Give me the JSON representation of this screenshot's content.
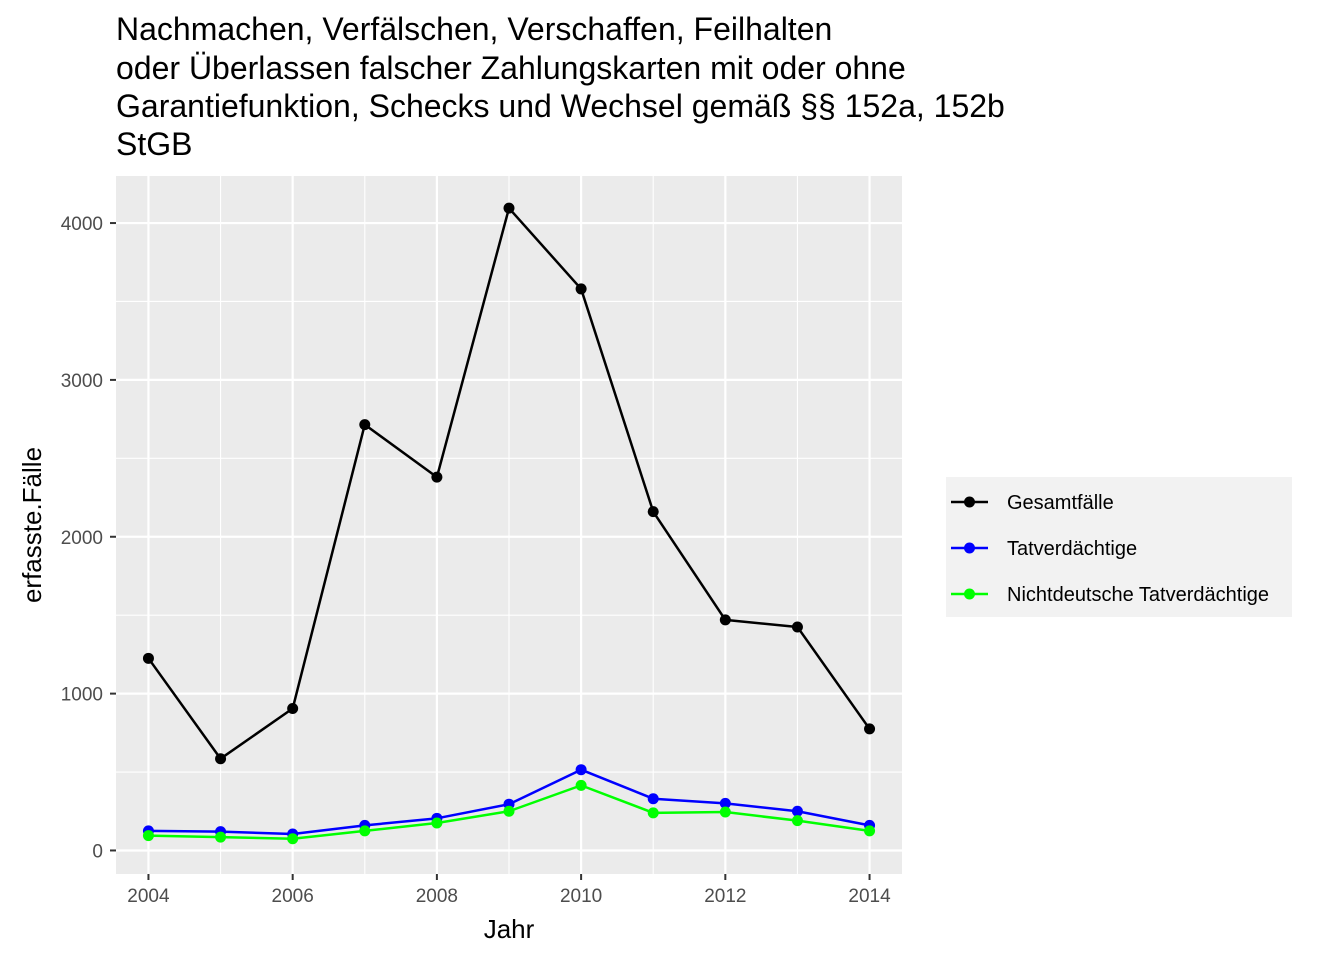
{
  "chart_data": {
    "type": "line",
    "title_lines": [
      "Nachmachen, Verfälschen, Verschaffen, Feilhalten",
      "oder Überlassen falscher Zahlungskarten mit oder ohne",
      "Garantiefunktion, Schecks und Wechsel gemäß §§ 152a, 152b",
      "StGB"
    ],
    "xlabel": "Jahr",
    "ylabel": "erfasste.Fälle",
    "x": [
      2004,
      2005,
      2006,
      2007,
      2008,
      2009,
      2010,
      2011,
      2012,
      2013,
      2014
    ],
    "xlim": [
      2003.55,
      2014.45
    ],
    "ylim": [
      -150,
      4300
    ],
    "x_ticks": [
      2004,
      2006,
      2008,
      2010,
      2012,
      2014
    ],
    "x_tick_labels": [
      "2004",
      "2006",
      "2008",
      "2010",
      "2012",
      "2014"
    ],
    "y_ticks": [
      0,
      1000,
      2000,
      3000,
      4000
    ],
    "y_tick_labels": [
      "0",
      "1000",
      "2000",
      "3000",
      "4000"
    ],
    "grid": true,
    "legend_position": "right",
    "series": [
      {
        "name": "Gesamtfälle",
        "color": "#000000",
        "values": [
          1225,
          585,
          905,
          2715,
          2380,
          4095,
          3580,
          2160,
          1470,
          1425,
          775
        ]
      },
      {
        "name": "Tatverdächtige",
        "color": "#0000ff",
        "values": [
          125,
          120,
          105,
          160,
          205,
          295,
          515,
          330,
          300,
          250,
          160
        ]
      },
      {
        "name": "Nichtdeutsche Tatverdächtige",
        "color": "#00ff00",
        "values": [
          95,
          85,
          75,
          125,
          175,
          250,
          415,
          240,
          245,
          190,
          125
        ]
      }
    ]
  }
}
